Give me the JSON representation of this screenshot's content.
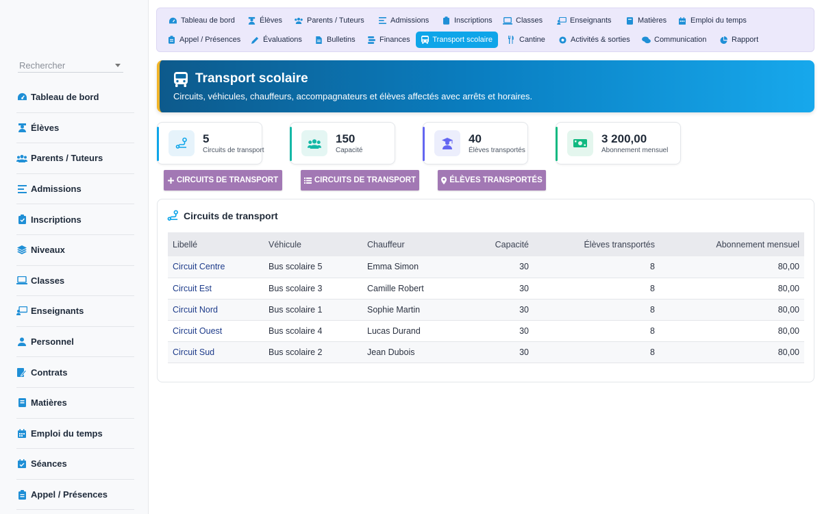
{
  "sidebar": {
    "search_placeholder": "Rechercher",
    "items": [
      {
        "label": "Tableau de bord",
        "icon": "gauge-icon"
      },
      {
        "label": "Élèves",
        "icon": "student-icon"
      },
      {
        "label": "Parents / Tuteurs",
        "icon": "users-icon"
      },
      {
        "label": "Admissions",
        "icon": "list-icon"
      },
      {
        "label": "Inscriptions",
        "icon": "clipboard-icon"
      },
      {
        "label": "Niveaux",
        "icon": "layers-icon"
      },
      {
        "label": "Classes",
        "icon": "laptop-icon"
      },
      {
        "label": "Enseignants",
        "icon": "teacher-icon"
      },
      {
        "label": "Personnel",
        "icon": "person-icon"
      },
      {
        "label": "Contrats",
        "icon": "contract-icon"
      },
      {
        "label": "Matières",
        "icon": "book-icon"
      },
      {
        "label": "Emploi du temps",
        "icon": "calendar-icon"
      },
      {
        "label": "Séances",
        "icon": "calendar-check-icon"
      },
      {
        "label": "Appel / Présences",
        "icon": "clipboard-list-icon"
      }
    ]
  },
  "topnav": {
    "items": [
      {
        "label": "Tableau de bord",
        "icon": "gauge-icon"
      },
      {
        "label": "Élèves",
        "icon": "student-icon"
      },
      {
        "label": "Parents / Tuteurs",
        "icon": "users-icon"
      },
      {
        "label": "Admissions",
        "icon": "list-icon"
      },
      {
        "label": "Inscriptions",
        "icon": "clipboard-icon"
      },
      {
        "label": "Classes",
        "icon": "laptop-icon"
      },
      {
        "label": "Enseignants",
        "icon": "teacher-icon"
      },
      {
        "label": "Matières",
        "icon": "book-icon"
      },
      {
        "label": "Emploi du temps",
        "icon": "calendar-icon"
      },
      {
        "label": "Appel / Présences",
        "icon": "clipboard-list-icon"
      },
      {
        "label": "Évaluations",
        "icon": "pencil-icon"
      },
      {
        "label": "Bulletins",
        "icon": "file-icon"
      },
      {
        "label": "Finances",
        "icon": "coins-icon"
      },
      {
        "label": "Transport scolaire",
        "icon": "bus-icon",
        "active": true
      },
      {
        "label": "Cantine",
        "icon": "utensils-icon"
      },
      {
        "label": "Activités & sorties",
        "icon": "ball-icon"
      },
      {
        "label": "Communication",
        "icon": "chat-icon"
      },
      {
        "label": "Rapport",
        "icon": "pie-chart-icon"
      }
    ]
  },
  "header": {
    "title": "Transport scolaire",
    "subtitle": "Circuits, véhicules, chauffeurs, accompagnateurs et élèves affectés avec arrêts et horaires.",
    "accent_color": "#f0b429"
  },
  "stats": [
    {
      "value": "5",
      "label": "Circuits de transport",
      "icon": "route-icon",
      "color": "#0ea5e9"
    },
    {
      "value": "150",
      "label": "Capacité",
      "icon": "users-icon",
      "color": "#14b8a6"
    },
    {
      "value": "40",
      "label": "Élèves transportés",
      "icon": "graduate-icon",
      "color": "#6366f1"
    },
    {
      "value": "3 200,00",
      "label": "Abonnement mensuel",
      "icon": "money-icon",
      "color": "#10b981"
    }
  ],
  "actions": [
    {
      "label": "CIRCUITS DE TRANSPORT",
      "icon": "plus-icon"
    },
    {
      "label": "CIRCUITS DE TRANSPORT",
      "icon": "list-icon"
    },
    {
      "label": "ÉLÈVES TRANSPORTÉS",
      "icon": "map-pin-icon"
    }
  ],
  "panel": {
    "title": "Circuits de transport",
    "icon": "route-icon",
    "columns": [
      "Libellé",
      "Véhicule",
      "Chauffeur",
      "Capacité",
      "Élèves transportés",
      "Abonnement mensuel"
    ],
    "rows": [
      [
        "Circuit Centre",
        "Bus scolaire 5",
        "Emma Simon",
        "30",
        "8",
        "80,00"
      ],
      [
        "Circuit Est",
        "Bus scolaire 3",
        "Camille Robert",
        "30",
        "8",
        "80,00"
      ],
      [
        "Circuit Nord",
        "Bus scolaire 1",
        "Sophie Martin",
        "30",
        "8",
        "80,00"
      ],
      [
        "Circuit Ouest",
        "Bus scolaire 4",
        "Lucas Durand",
        "30",
        "8",
        "80,00"
      ],
      [
        "Circuit Sud",
        "Bus scolaire 2",
        "Jean Dubois",
        "30",
        "8",
        "80,00"
      ]
    ]
  },
  "colors": {
    "active_tab": "#0ea5e9",
    "action_button": "#a278b4",
    "link": "#1d3b8a"
  }
}
